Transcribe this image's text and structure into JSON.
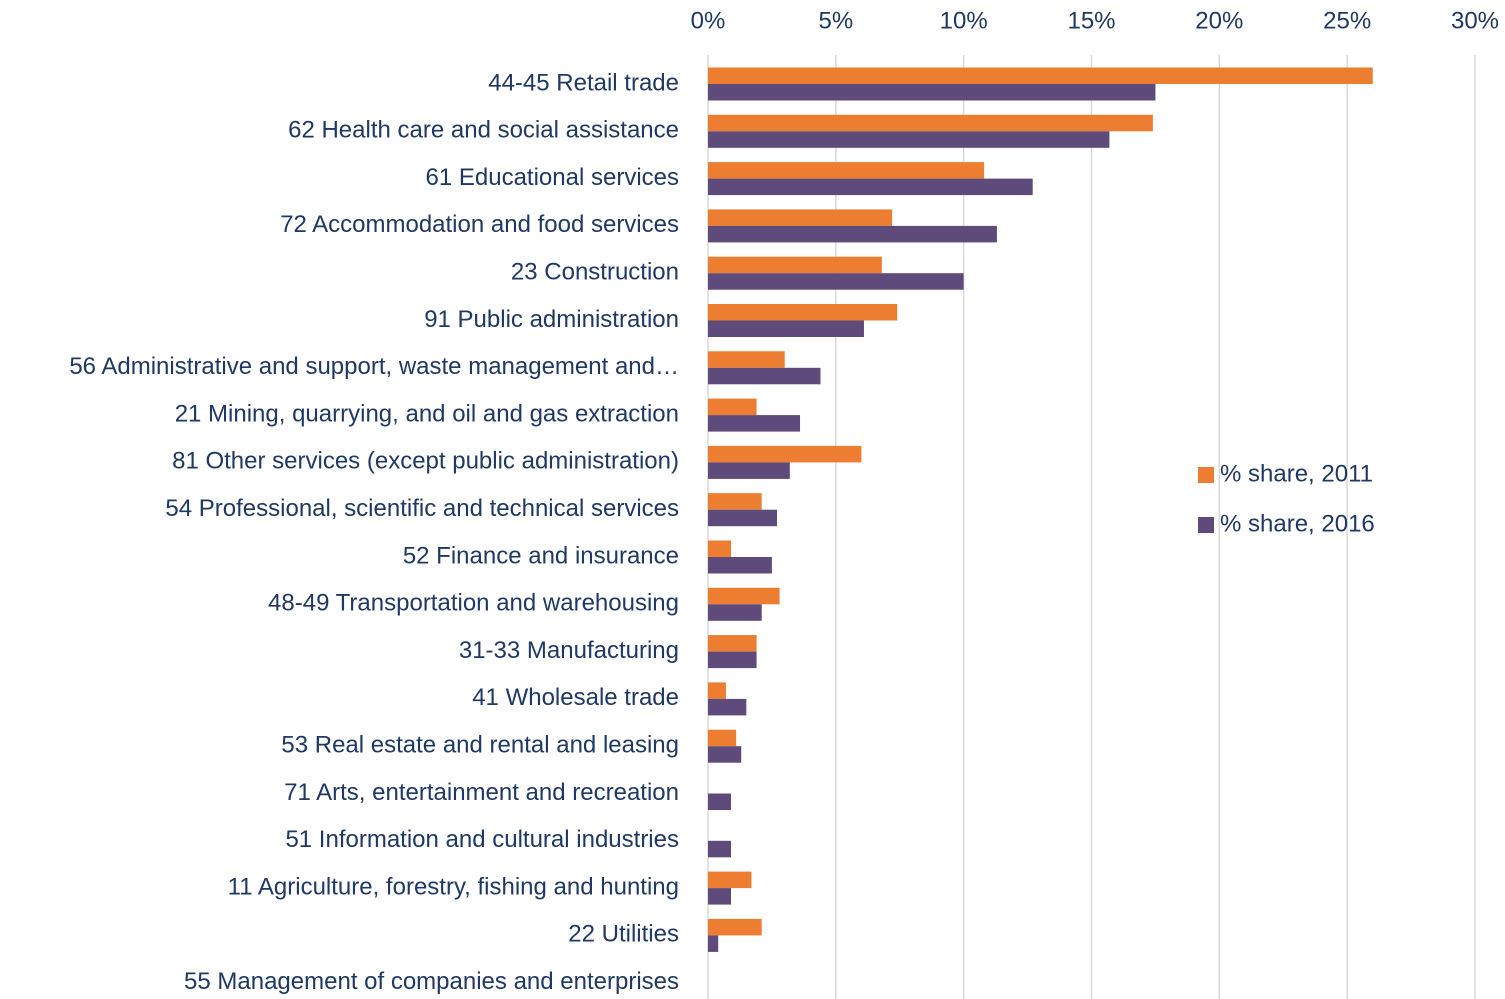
{
  "chart_data": {
    "type": "barh",
    "categories": [
      "44-45 Retail trade",
      "62 Health care and social assistance",
      "61 Educational services",
      "72 Accommodation and food services",
      "23 Construction",
      "91 Public administration",
      "56 Administrative and support, waste management and…",
      "21 Mining, quarrying, and oil and gas extraction",
      "81 Other services (except public administration)",
      "54 Professional, scientific and technical services",
      "52 Finance and insurance",
      "48-49 Transportation and warehousing",
      "31-33 Manufacturing",
      "41 Wholesale trade",
      "53 Real estate and rental and leasing",
      "71 Arts, entertainment and recreation",
      "51 Information and cultural industries",
      "11 Agriculture, forestry, fishing and hunting",
      "22 Utilities",
      "55 Management of companies and enterprises"
    ],
    "series": [
      {
        "name": "% share, 2011",
        "color": "#ed7d31",
        "values": [
          26.0,
          17.4,
          10.8,
          7.2,
          6.8,
          7.4,
          3.0,
          1.9,
          6.0,
          2.1,
          0.9,
          2.8,
          1.9,
          0.7,
          1.1,
          0,
          0,
          1.7,
          2.1,
          0
        ]
      },
      {
        "name": "% share, 2016",
        "color": "#5f4b7b",
        "values": [
          17.5,
          15.7,
          12.7,
          11.3,
          10.0,
          6.1,
          4.4,
          3.6,
          3.2,
          2.7,
          2.5,
          2.1,
          1.9,
          1.5,
          1.3,
          0.9,
          0.9,
          0.9,
          0.4,
          0
        ]
      }
    ],
    "xlim": [
      0,
      30
    ],
    "xticks": [
      {
        "value": 0,
        "label": "0%"
      },
      {
        "value": 5,
        "label": "5%"
      },
      {
        "value": 10,
        "label": "10%"
      },
      {
        "value": 15,
        "label": "15%"
      },
      {
        "value": 20,
        "label": "20%"
      },
      {
        "value": 25,
        "label": "25%"
      },
      {
        "value": 30,
        "label": "30%"
      }
    ],
    "grid": true,
    "legend": "right"
  }
}
